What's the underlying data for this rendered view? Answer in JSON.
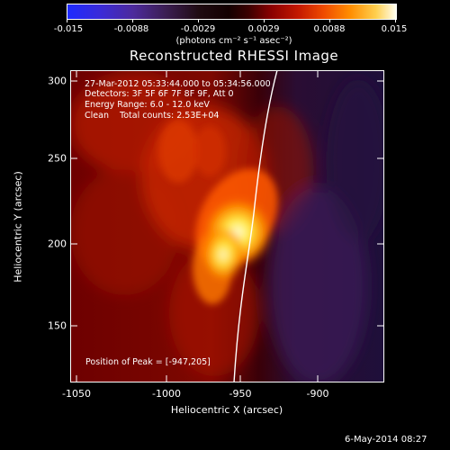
{
  "colorbar": {
    "ticks": [
      "-0.015",
      "-0.0088",
      "-0.0029",
      "0.0029",
      "0.0088",
      "0.015"
    ],
    "units_text": "(photons cm⁻² s⁻¹ asec⁻²)"
  },
  "title": "Reconstructed RHESSI Image",
  "annotations": {
    "time_range": "27-Mar-2012 05:33:44.000 to 05:34:56.000",
    "detectors": "Detectors: 3F 5F 6F 7F 8F 9F, Att 0",
    "energy_range": "Energy Range: 6.0 - 12.0 keV",
    "method": "Clean    Total counts: 2.53E+04",
    "peak": "Position of Peak = [-947,205]"
  },
  "axes": {
    "xlabel": "Heliocentric X (arcsec)",
    "ylabel": "Heliocentric Y (arcsec)",
    "xticks": [
      "-1050",
      "-1000",
      "-950",
      "-900"
    ],
    "yticks": [
      "300",
      "250",
      "200",
      "150"
    ]
  },
  "footer": "6-May-2014 08:27",
  "colors": {
    "background": "#000000",
    "limb_line": "#ffffff",
    "colormap": "blue-purple-black-red-yellow-white"
  }
}
